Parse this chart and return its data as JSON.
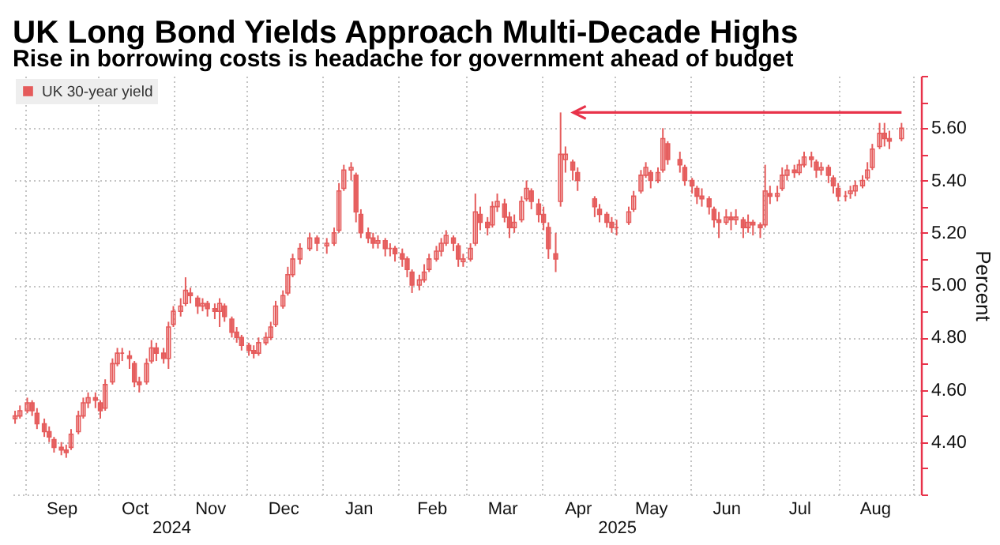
{
  "chart_data": {
    "type": "candlestick",
    "title": "UK Long Bond Yields Approach Multi-Decade Highs",
    "subtitle": "Rise in borrowing costs is headache for government ahead of budget",
    "ylabel": "Percent",
    "legend": "top left",
    "grid": true,
    "xlim": [
      "2024-08-27",
      "2025-09-04"
    ],
    "xticks": [
      {
        "value": "2024-09-01",
        "label": null
      },
      {
        "value": "2024-09-16",
        "label": "Sep"
      },
      {
        "value": "2024-10-01",
        "label": null
      },
      {
        "value": "2024-10-16",
        "label": "Oct"
      },
      {
        "value": "2024-11-01",
        "label": null
      },
      {
        "value": "2024-11-16",
        "label": "Nov"
      },
      {
        "value": "2024-12-01",
        "label": null
      },
      {
        "value": "2024-12-16",
        "label": "Dec"
      },
      {
        "value": "2025-01-01",
        "label": null
      },
      {
        "value": "2025-01-16",
        "label": "Jan"
      },
      {
        "value": "2025-02-01",
        "label": null
      },
      {
        "value": "2025-02-15",
        "label": "Feb"
      },
      {
        "value": "2025-03-01",
        "label": null
      },
      {
        "value": "2025-03-16",
        "label": "Mar"
      },
      {
        "value": "2025-04-01",
        "label": null
      },
      {
        "value": "2025-04-16",
        "label": "Apr"
      },
      {
        "value": "2025-05-01",
        "label": null
      },
      {
        "value": "2025-05-16",
        "label": "May"
      },
      {
        "value": "2025-06-01",
        "label": null
      },
      {
        "value": "2025-06-16",
        "label": "Jun"
      },
      {
        "value": "2025-07-01",
        "label": null
      },
      {
        "value": "2025-07-16",
        "label": "Jul"
      },
      {
        "value": "2025-08-01",
        "label": null
      },
      {
        "value": "2025-08-16",
        "label": "Aug"
      },
      {
        "value": "2025-09-01",
        "label": null
      }
    ],
    "x2lim": [
      "2024-08-27",
      "2025-09-04"
    ],
    "x2ticks": [
      {
        "value": "2024-10-31",
        "label": "2024"
      },
      {
        "value": "2025-05-02",
        "label": "2025"
      }
    ],
    "ylim": [
      4.2,
      5.8
    ],
    "yticks": [
      {
        "value": 4.2,
        "label": null
      },
      {
        "value": 4.3,
        "label": null
      },
      {
        "value": 4.4,
        "label": "4.40"
      },
      {
        "value": 4.5,
        "label": null
      },
      {
        "value": 4.6,
        "label": "4.60"
      },
      {
        "value": 4.7,
        "label": null
      },
      {
        "value": 4.8,
        "label": "4.80"
      },
      {
        "value": 4.9,
        "label": null
      },
      {
        "value": 5.0,
        "label": "5.00"
      },
      {
        "value": 5.1,
        "label": null
      },
      {
        "value": 5.2,
        "label": "5.20"
      },
      {
        "value": 5.3,
        "label": null
      },
      {
        "value": 5.4,
        "label": "5.40"
      },
      {
        "value": 5.5,
        "label": null
      },
      {
        "value": 5.6,
        "label": "5.60"
      },
      {
        "value": 5.7,
        "label": null
      },
      {
        "value": 5.8,
        "label": null
      }
    ],
    "x": [
      "2024-08-28",
      "2024-08-30",
      "2024-09-02",
      "2024-09-04",
      "2024-09-06",
      "2024-09-09",
      "2024-09-11",
      "2024-09-13",
      "2024-09-16",
      "2024-09-18",
      "2024-09-20",
      "2024-09-23",
      "2024-09-25",
      "2024-09-27",
      "2024-09-30",
      "2024-10-02",
      "2024-10-04",
      "2024-10-07",
      "2024-10-09",
      "2024-10-11",
      "2024-10-14",
      "2024-10-16",
      "2024-10-18",
      "2024-10-21",
      "2024-10-23",
      "2024-10-25",
      "2024-10-28",
      "2024-10-30",
      "2024-11-01",
      "2024-11-04",
      "2024-11-06",
      "2024-11-08",
      "2024-11-11",
      "2024-11-13",
      "2024-11-15",
      "2024-11-18",
      "2024-11-20",
      "2024-11-22",
      "2024-11-25",
      "2024-11-27",
      "2024-11-29",
      "2024-12-02",
      "2024-12-04",
      "2024-12-06",
      "2024-12-09",
      "2024-12-11",
      "2024-12-13",
      "2024-12-16",
      "2024-12-18",
      "2024-12-20",
      "2024-12-23",
      "2024-12-27",
      "2024-12-30",
      "2025-01-03",
      "2025-01-06",
      "2025-01-08",
      "2025-01-10",
      "2025-01-13",
      "2025-01-15",
      "2025-01-17",
      "2025-01-20",
      "2025-01-22",
      "2025-01-24",
      "2025-01-27",
      "2025-01-29",
      "2025-01-31",
      "2025-02-03",
      "2025-02-05",
      "2025-02-07",
      "2025-02-10",
      "2025-02-12",
      "2025-02-14",
      "2025-02-17",
      "2025-02-19",
      "2025-02-21",
      "2025-02-24",
      "2025-02-26",
      "2025-02-28",
      "2025-03-03",
      "2025-03-05",
      "2025-03-07",
      "2025-03-10",
      "2025-03-12",
      "2025-03-14",
      "2025-03-17",
      "2025-03-19",
      "2025-03-21",
      "2025-03-24",
      "2025-03-26",
      "2025-03-28",
      "2025-03-31",
      "2025-04-02",
      "2025-04-04",
      "2025-04-07",
      "2025-04-09",
      "2025-04-11",
      "2025-04-14",
      "2025-04-16",
      "2025-04-23",
      "2025-04-25",
      "2025-04-28",
      "2025-04-30",
      "2025-05-02",
      "2025-05-07",
      "2025-05-09",
      "2025-05-12",
      "2025-05-14",
      "2025-05-16",
      "2025-05-19",
      "2025-05-21",
      "2025-05-23",
      "2025-05-28",
      "2025-05-30",
      "2025-06-02",
      "2025-06-04",
      "2025-06-06",
      "2025-06-09",
      "2025-06-11",
      "2025-06-13",
      "2025-06-16",
      "2025-06-18",
      "2025-06-20",
      "2025-06-23",
      "2025-06-25",
      "2025-06-27",
      "2025-06-30",
      "2025-07-02",
      "2025-07-04",
      "2025-07-07",
      "2025-07-09",
      "2025-07-11",
      "2025-07-14",
      "2025-07-16",
      "2025-07-18",
      "2025-07-21",
      "2025-07-23",
      "2025-07-25",
      "2025-07-28",
      "2025-07-30",
      "2025-08-01",
      "2025-08-04",
      "2025-08-06",
      "2025-08-08",
      "2025-08-11",
      "2025-08-13",
      "2025-08-15",
      "2025-08-18",
      "2025-08-20",
      "2025-08-22",
      "2025-08-27"
    ],
    "series": [
      {
        "name": "UK 30-year yield",
        "color": "#e55b5b",
        "ohlc": [
          [
            4.49,
            4.52,
            4.47,
            4.5
          ],
          [
            4.5,
            4.54,
            4.49,
            4.52
          ],
          [
            4.52,
            4.57,
            4.51,
            4.55
          ],
          [
            4.55,
            4.56,
            4.5,
            4.52
          ],
          [
            4.51,
            4.53,
            4.45,
            4.47
          ],
          [
            4.47,
            4.49,
            4.42,
            4.44
          ],
          [
            4.44,
            4.46,
            4.4,
            4.42
          ],
          [
            4.41,
            4.42,
            4.36,
            4.38
          ],
          [
            4.38,
            4.4,
            4.35,
            4.37
          ],
          [
            4.37,
            4.39,
            4.34,
            4.36
          ],
          [
            4.38,
            4.45,
            4.37,
            4.43
          ],
          [
            4.44,
            4.52,
            4.43,
            4.5
          ],
          [
            4.5,
            4.57,
            4.49,
            4.55
          ],
          [
            4.55,
            4.59,
            4.53,
            4.57
          ],
          [
            4.57,
            4.59,
            4.53,
            4.56
          ],
          [
            4.55,
            4.56,
            4.49,
            4.52
          ],
          [
            4.53,
            4.64,
            4.52,
            4.62
          ],
          [
            4.63,
            4.72,
            4.62,
            4.7
          ],
          [
            4.7,
            4.76,
            4.69,
            4.74
          ],
          [
            4.74,
            4.76,
            4.71,
            4.74
          ],
          [
            4.73,
            4.75,
            4.68,
            4.72
          ],
          [
            4.7,
            4.71,
            4.61,
            4.63
          ],
          [
            4.63,
            4.65,
            4.59,
            4.62
          ],
          [
            4.63,
            4.72,
            4.62,
            4.7
          ],
          [
            4.71,
            4.79,
            4.7,
            4.76
          ],
          [
            4.76,
            4.78,
            4.71,
            4.74
          ],
          [
            4.74,
            4.76,
            4.7,
            4.72
          ],
          [
            4.72,
            4.86,
            4.68,
            4.84
          ],
          [
            4.85,
            4.92,
            4.84,
            4.9
          ],
          [
            4.9,
            4.95,
            4.88,
            4.92
          ],
          [
            4.93,
            5.03,
            4.92,
            4.98
          ],
          [
            4.97,
            4.99,
            4.93,
            4.96
          ],
          [
            4.95,
            4.96,
            4.89,
            4.92
          ],
          [
            4.92,
            4.95,
            4.9,
            4.93
          ],
          [
            4.93,
            4.94,
            4.88,
            4.91
          ],
          [
            4.91,
            4.93,
            4.87,
            4.9
          ],
          [
            4.9,
            4.95,
            4.84,
            4.93
          ],
          [
            4.92,
            4.93,
            4.86,
            4.88
          ],
          [
            4.87,
            4.88,
            4.8,
            4.82
          ],
          [
            4.82,
            4.84,
            4.78,
            4.8
          ],
          [
            4.8,
            4.81,
            4.75,
            4.77
          ],
          [
            4.77,
            4.78,
            4.73,
            4.75
          ],
          [
            4.75,
            4.77,
            4.72,
            4.74
          ],
          [
            4.74,
            4.8,
            4.73,
            4.78
          ],
          [
            4.78,
            4.82,
            4.77,
            4.8
          ],
          [
            4.8,
            4.86,
            4.79,
            4.84
          ],
          [
            4.85,
            4.94,
            4.84,
            4.92
          ],
          [
            4.92,
            4.98,
            4.91,
            4.96
          ],
          [
            4.97,
            5.07,
            4.96,
            5.04
          ],
          [
            5.04,
            5.12,
            5.03,
            5.1
          ],
          [
            5.1,
            5.16,
            5.08,
            5.14
          ],
          [
            5.14,
            5.2,
            5.13,
            5.18
          ],
          [
            5.18,
            5.19,
            5.13,
            5.16
          ],
          [
            5.15,
            5.18,
            5.12,
            5.16
          ],
          [
            5.16,
            5.22,
            5.15,
            5.2
          ],
          [
            5.21,
            5.39,
            5.2,
            5.36
          ],
          [
            5.37,
            5.46,
            5.36,
            5.44
          ],
          [
            5.44,
            5.47,
            5.4,
            5.45
          ],
          [
            5.42,
            5.43,
            5.24,
            5.28
          ],
          [
            5.27,
            5.29,
            5.18,
            5.2
          ],
          [
            5.2,
            5.22,
            5.16,
            5.18
          ],
          [
            5.18,
            5.2,
            5.14,
            5.16
          ],
          [
            5.16,
            5.19,
            5.14,
            5.17
          ],
          [
            5.17,
            5.18,
            5.11,
            5.14
          ],
          [
            5.14,
            5.16,
            5.11,
            5.14
          ],
          [
            5.14,
            5.15,
            5.09,
            5.12
          ],
          [
            5.12,
            5.14,
            5.07,
            5.1
          ],
          [
            5.1,
            5.11,
            5.03,
            5.06
          ],
          [
            5.05,
            5.06,
            4.97,
            5.0
          ],
          [
            5.0,
            5.04,
            4.98,
            5.02
          ],
          [
            5.02,
            5.08,
            5.01,
            5.05
          ],
          [
            5.06,
            5.12,
            5.05,
            5.1
          ],
          [
            5.1,
            5.15,
            5.09,
            5.13
          ],
          [
            5.13,
            5.18,
            5.11,
            5.16
          ],
          [
            5.16,
            5.21,
            5.15,
            5.19
          ],
          [
            5.18,
            5.19,
            5.13,
            5.16
          ],
          [
            5.15,
            5.16,
            5.07,
            5.1
          ],
          [
            5.09,
            5.12,
            5.07,
            5.1
          ],
          [
            5.1,
            5.16,
            5.09,
            5.14
          ],
          [
            5.16,
            5.35,
            5.15,
            5.28
          ],
          [
            5.27,
            5.3,
            5.21,
            5.24
          ],
          [
            5.24,
            5.26,
            5.19,
            5.22
          ],
          [
            5.23,
            5.32,
            5.22,
            5.3
          ],
          [
            5.3,
            5.35,
            5.28,
            5.32
          ],
          [
            5.31,
            5.33,
            5.24,
            5.26
          ],
          [
            5.26,
            5.28,
            5.18,
            5.22
          ],
          [
            5.22,
            5.27,
            5.2,
            5.24
          ],
          [
            5.25,
            5.34,
            5.24,
            5.32
          ],
          [
            5.33,
            5.4,
            5.32,
            5.37
          ],
          [
            5.36,
            5.37,
            5.29,
            5.32
          ],
          [
            5.31,
            5.33,
            5.24,
            5.27
          ],
          [
            5.27,
            5.3,
            5.21,
            5.24
          ],
          [
            5.22,
            5.24,
            5.1,
            5.14
          ],
          [
            5.12,
            5.2,
            5.05,
            5.1
          ],
          [
            5.32,
            5.66,
            5.3,
            5.5
          ],
          [
            5.48,
            5.53,
            5.43,
            5.5
          ],
          [
            5.47,
            5.48,
            5.4,
            5.44
          ],
          [
            5.43,
            5.45,
            5.36,
            5.4
          ],
          [
            5.33,
            5.34,
            5.26,
            5.3
          ],
          [
            5.29,
            5.31,
            5.24,
            5.27
          ],
          [
            5.27,
            5.28,
            5.22,
            5.24
          ],
          [
            5.24,
            5.26,
            5.2,
            5.22
          ],
          [
            5.22,
            5.25,
            5.19,
            5.22
          ],
          [
            5.24,
            5.3,
            5.23,
            5.28
          ],
          [
            5.29,
            5.36,
            5.28,
            5.34
          ],
          [
            5.36,
            5.44,
            5.35,
            5.42
          ],
          [
            5.42,
            5.47,
            5.41,
            5.45
          ],
          [
            5.43,
            5.44,
            5.37,
            5.4
          ],
          [
            5.4,
            5.45,
            5.39,
            5.43
          ],
          [
            5.44,
            5.6,
            5.43,
            5.56
          ],
          [
            5.54,
            5.55,
            5.46,
            5.48
          ],
          [
            5.48,
            5.51,
            5.43,
            5.46
          ],
          [
            5.45,
            5.46,
            5.38,
            5.4
          ],
          [
            5.4,
            5.41,
            5.35,
            5.38
          ],
          [
            5.37,
            5.38,
            5.31,
            5.34
          ],
          [
            5.34,
            5.37,
            5.3,
            5.33
          ],
          [
            5.33,
            5.34,
            5.27,
            5.3
          ],
          [
            5.29,
            5.3,
            5.22,
            5.25
          ],
          [
            5.25,
            5.28,
            5.18,
            5.24
          ],
          [
            5.24,
            5.29,
            5.23,
            5.26
          ],
          [
            5.26,
            5.28,
            5.21,
            5.25
          ],
          [
            5.25,
            5.29,
            5.23,
            5.26
          ],
          [
            5.25,
            5.26,
            5.18,
            5.22
          ],
          [
            5.22,
            5.27,
            5.2,
            5.24
          ],
          [
            5.24,
            5.25,
            5.19,
            5.23
          ],
          [
            5.23,
            5.24,
            5.18,
            5.22
          ],
          [
            5.23,
            5.46,
            5.22,
            5.36
          ],
          [
            5.35,
            5.38,
            5.31,
            5.34
          ],
          [
            5.34,
            5.38,
            5.32,
            5.35
          ],
          [
            5.37,
            5.45,
            5.36,
            5.42
          ],
          [
            5.42,
            5.46,
            5.4,
            5.44
          ],
          [
            5.44,
            5.46,
            5.41,
            5.43
          ],
          [
            5.43,
            5.48,
            5.42,
            5.46
          ],
          [
            5.46,
            5.51,
            5.45,
            5.49
          ],
          [
            5.49,
            5.51,
            5.45,
            5.48
          ],
          [
            5.47,
            5.48,
            5.41,
            5.44
          ],
          [
            5.44,
            5.47,
            5.42,
            5.45
          ],
          [
            5.45,
            5.46,
            5.39,
            5.42
          ],
          [
            5.41,
            5.42,
            5.35,
            5.38
          ],
          [
            5.37,
            5.39,
            5.32,
            5.34
          ],
          [
            5.34,
            5.36,
            5.32,
            5.34
          ],
          [
            5.35,
            5.38,
            5.33,
            5.36
          ],
          [
            5.36,
            5.4,
            5.34,
            5.38
          ],
          [
            5.38,
            5.42,
            5.37,
            5.4
          ],
          [
            5.41,
            5.47,
            5.4,
            5.44
          ],
          [
            5.45,
            5.54,
            5.44,
            5.52
          ],
          [
            5.53,
            5.62,
            5.52,
            5.58
          ],
          [
            5.58,
            5.62,
            5.53,
            5.56
          ],
          [
            5.56,
            5.59,
            5.52,
            5.55
          ],
          [
            5.56,
            5.62,
            5.55,
            5.6
          ]
        ]
      }
    ]
  }
}
